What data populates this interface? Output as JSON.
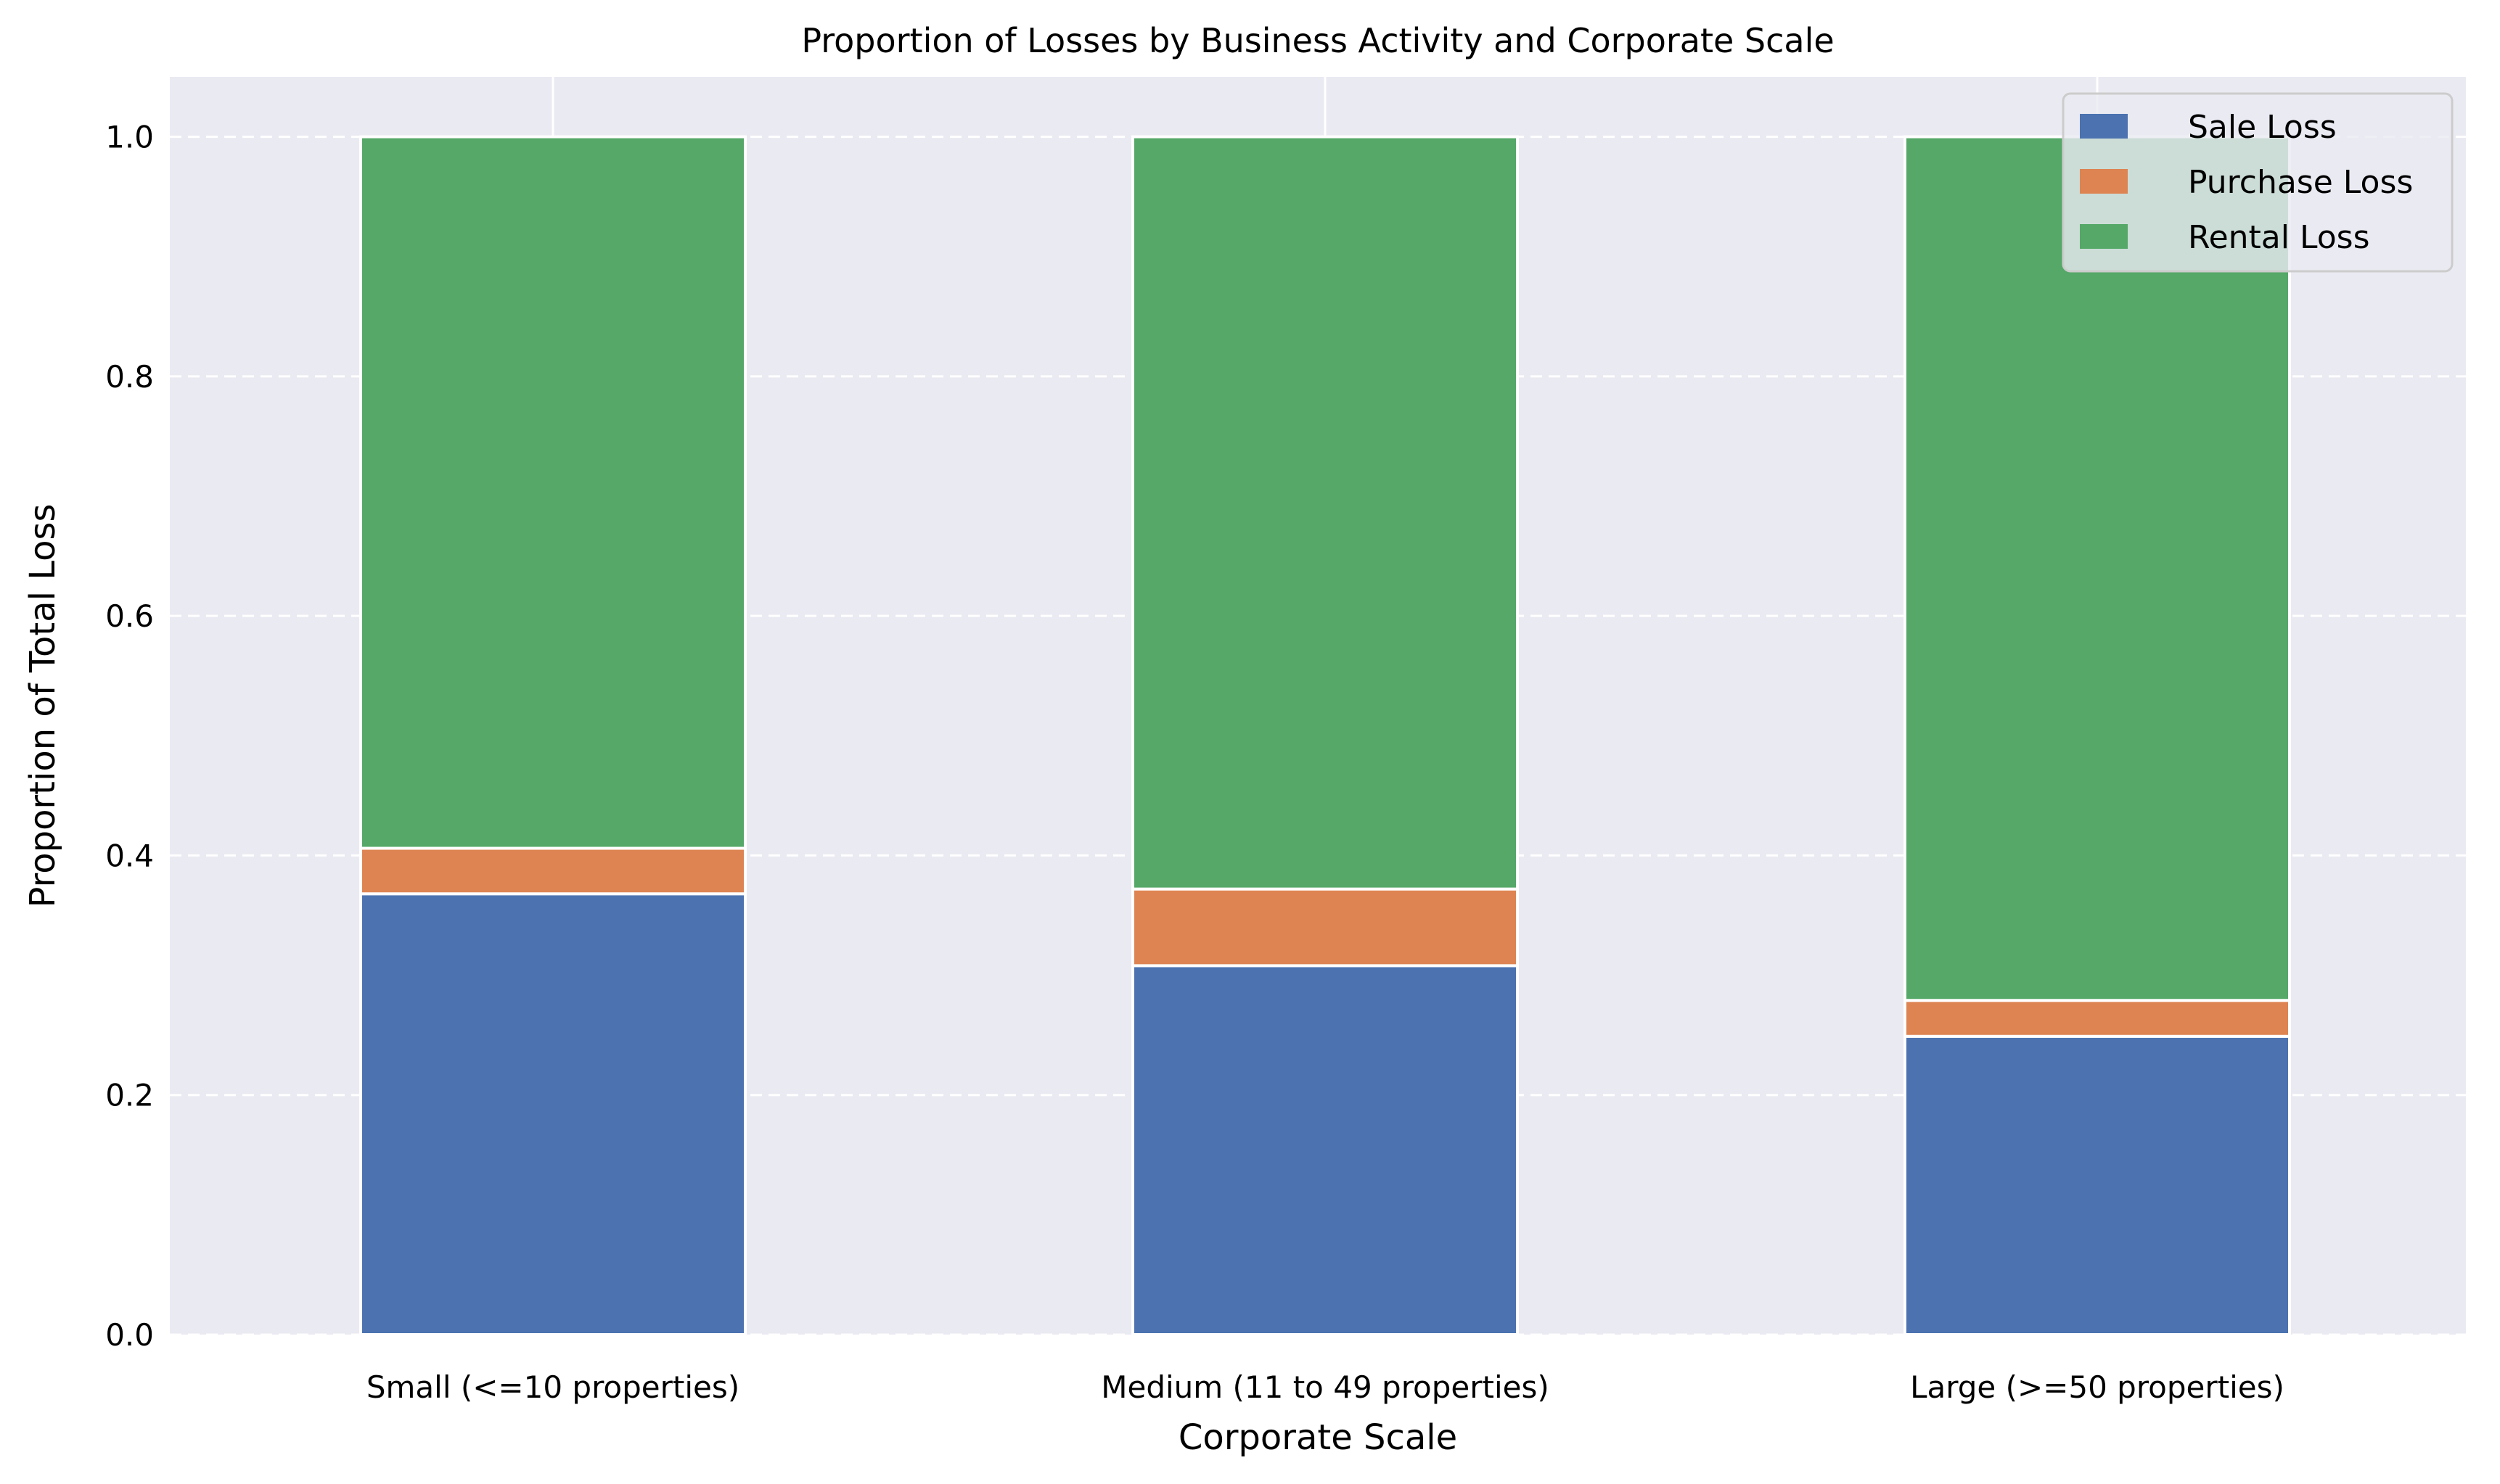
{
  "chart_data": {
    "type": "bar",
    "stacked": true,
    "title": "Proportion of Losses by Business Activity and Corporate Scale",
    "xlabel": "Corporate Scale",
    "ylabel": "Proportion of Total Loss",
    "categories": [
      "Small (<=10 properties)",
      "Medium (11 to 49 properties)",
      "Large (>=50 properties)"
    ],
    "series": [
      {
        "name": "Sale Loss",
        "color": "#4c72b0",
        "values": [
          0.368,
          0.308,
          0.249
        ]
      },
      {
        "name": "Purchase Loss",
        "color": "#dd8452",
        "values": [
          0.038,
          0.064,
          0.03
        ]
      },
      {
        "name": "Rental Loss",
        "color": "#55a868",
        "values": [
          0.594,
          0.628,
          0.721
        ]
      }
    ],
    "ylim": [
      0,
      1.05
    ],
    "yticks": [
      0.0,
      0.2,
      0.4,
      0.6,
      0.8,
      1.0
    ],
    "ytick_labels": [
      "0.0",
      "0.2",
      "0.4",
      "0.6",
      "0.8",
      "1.0"
    ],
    "grid": {
      "y": "dashed",
      "x": "solid"
    },
    "legend": "top-right",
    "background": "#eaeaf2"
  }
}
